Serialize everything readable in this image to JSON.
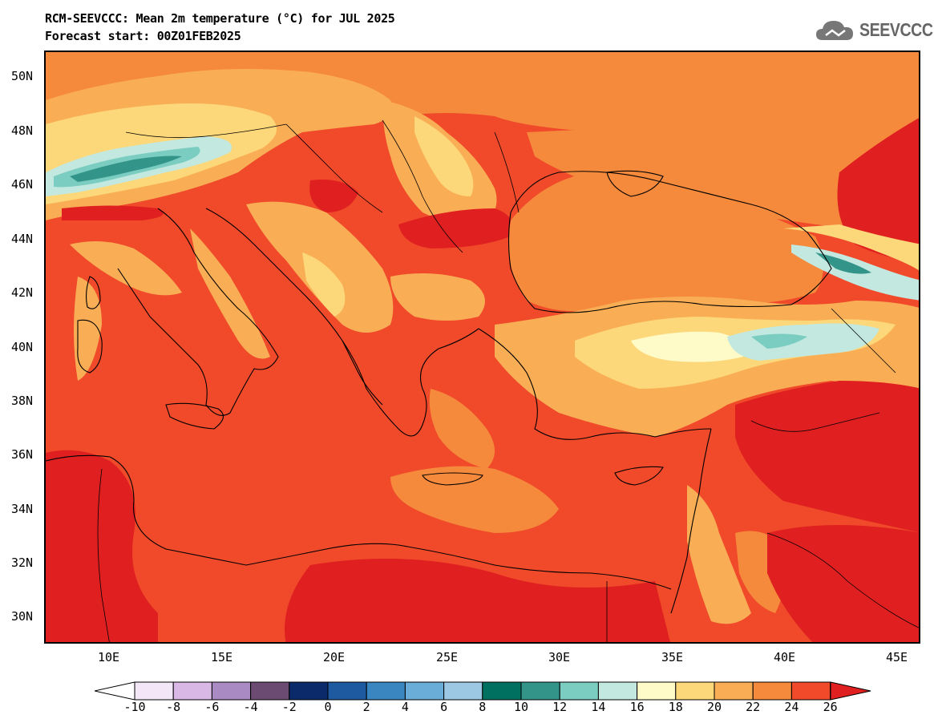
{
  "header": {
    "title": "RCM-SEEVCCC: Mean 2m temperature (°C) for JUL 2025",
    "subtitle": "Forecast start: 00Z01FEB2025",
    "logo_text": "SEEVCCC"
  },
  "map": {
    "variable": "Mean 2m temperature",
    "unit": "°C",
    "lat_labels": [
      "50N",
      "48N",
      "46N",
      "44N",
      "42N",
      "40N",
      "38N",
      "36N",
      "34N",
      "32N",
      "30N"
    ],
    "lon_labels": [
      "10E",
      "15E",
      "20E",
      "25E",
      "30E",
      "35E",
      "40E",
      "45E"
    ]
  },
  "colorbar": {
    "labels": [
      "-10",
      "-8",
      "-6",
      "-4",
      "-2",
      "0",
      "2",
      "4",
      "6",
      "8",
      "10",
      "12",
      "14",
      "16",
      "18",
      "20",
      "22",
      "24",
      "26"
    ],
    "colors": [
      "#f2e6f7",
      "#d9b8e6",
      "#a98ac2",
      "#6b4b72",
      "#0a2a6a",
      "#1d5aa0",
      "#3a86c0",
      "#6aadd8",
      "#9dc8e4",
      "#007060",
      "#33958a",
      "#7acdc0",
      "#c2e8e0",
      "#fffbc8",
      "#fcd87a",
      "#f9ae55",
      "#f58a3c",
      "#f04a2a"
    ],
    "under_color": "#ffffff",
    "over_color": "#e02020"
  }
}
